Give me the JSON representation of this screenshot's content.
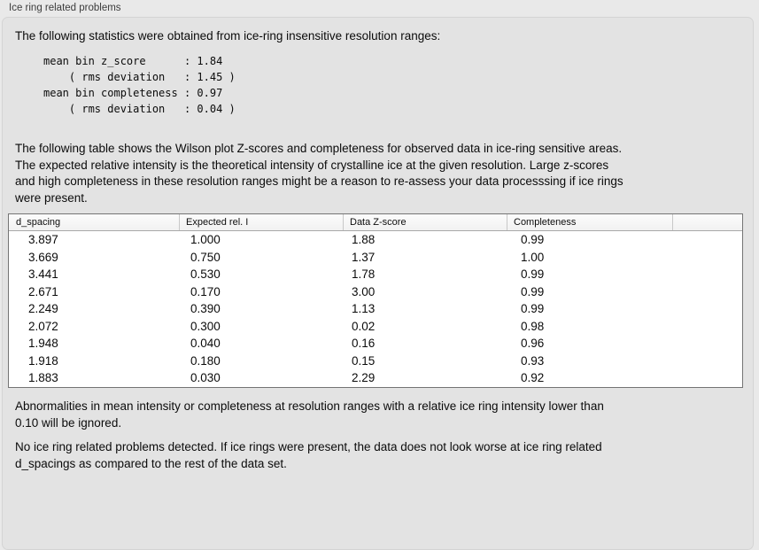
{
  "panel": {
    "title": "Ice ring related problems"
  },
  "intro": "The following statistics were obtained from ice-ring insensitive resolution ranges:",
  "statistics": {
    "mean_bin_z_score": "1.84",
    "z_score_rms_deviation": "1.45",
    "mean_bin_completeness": "0.97",
    "completeness_rms_deviation": "0.04"
  },
  "stats_block": "mean bin z_score      : 1.84\n    ( rms deviation   : 1.45 )\nmean bin completeness : 0.97\n    ( rms deviation   : 0.04 )",
  "description": "The following table shows the Wilson plot Z-scores and completeness for observed data in ice-ring sensitive areas.\nThe expected relative intensity is the theoretical intensity of crystalline ice at the given resolution. Large z-scores\nand high completeness in these resolution ranges might be a reason to re-assess your data processsing if ice rings\nwere present.",
  "table": {
    "columns": [
      "d_spacing",
      "Expected rel. I",
      "Data Z-score",
      "Completeness",
      ""
    ],
    "rows": [
      [
        "3.897",
        "1.000",
        "1.88",
        "0.99"
      ],
      [
        "3.669",
        "0.750",
        "1.37",
        "1.00"
      ],
      [
        "3.441",
        "0.530",
        "1.78",
        "0.99"
      ],
      [
        "2.671",
        "0.170",
        "3.00",
        "0.99"
      ],
      [
        "2.249",
        "0.390",
        "1.13",
        "0.99"
      ],
      [
        "2.072",
        "0.300",
        "0.02",
        "0.98"
      ],
      [
        "1.948",
        "0.040",
        "0.16",
        "0.96"
      ],
      [
        "1.918",
        "0.180",
        "0.15",
        "0.93"
      ],
      [
        "1.883",
        "0.030",
        "2.29",
        "0.92"
      ]
    ]
  },
  "ignore_note": "Abnormalities in mean intensity or completeness at resolution ranges with a relative ice ring intensity lower than\n0.10 will be ignored.",
  "conclusion": "No ice ring related problems detected. If ice rings were present, the data does not look worse at ice ring related\nd_spacings as compared to the rest of the data set."
}
